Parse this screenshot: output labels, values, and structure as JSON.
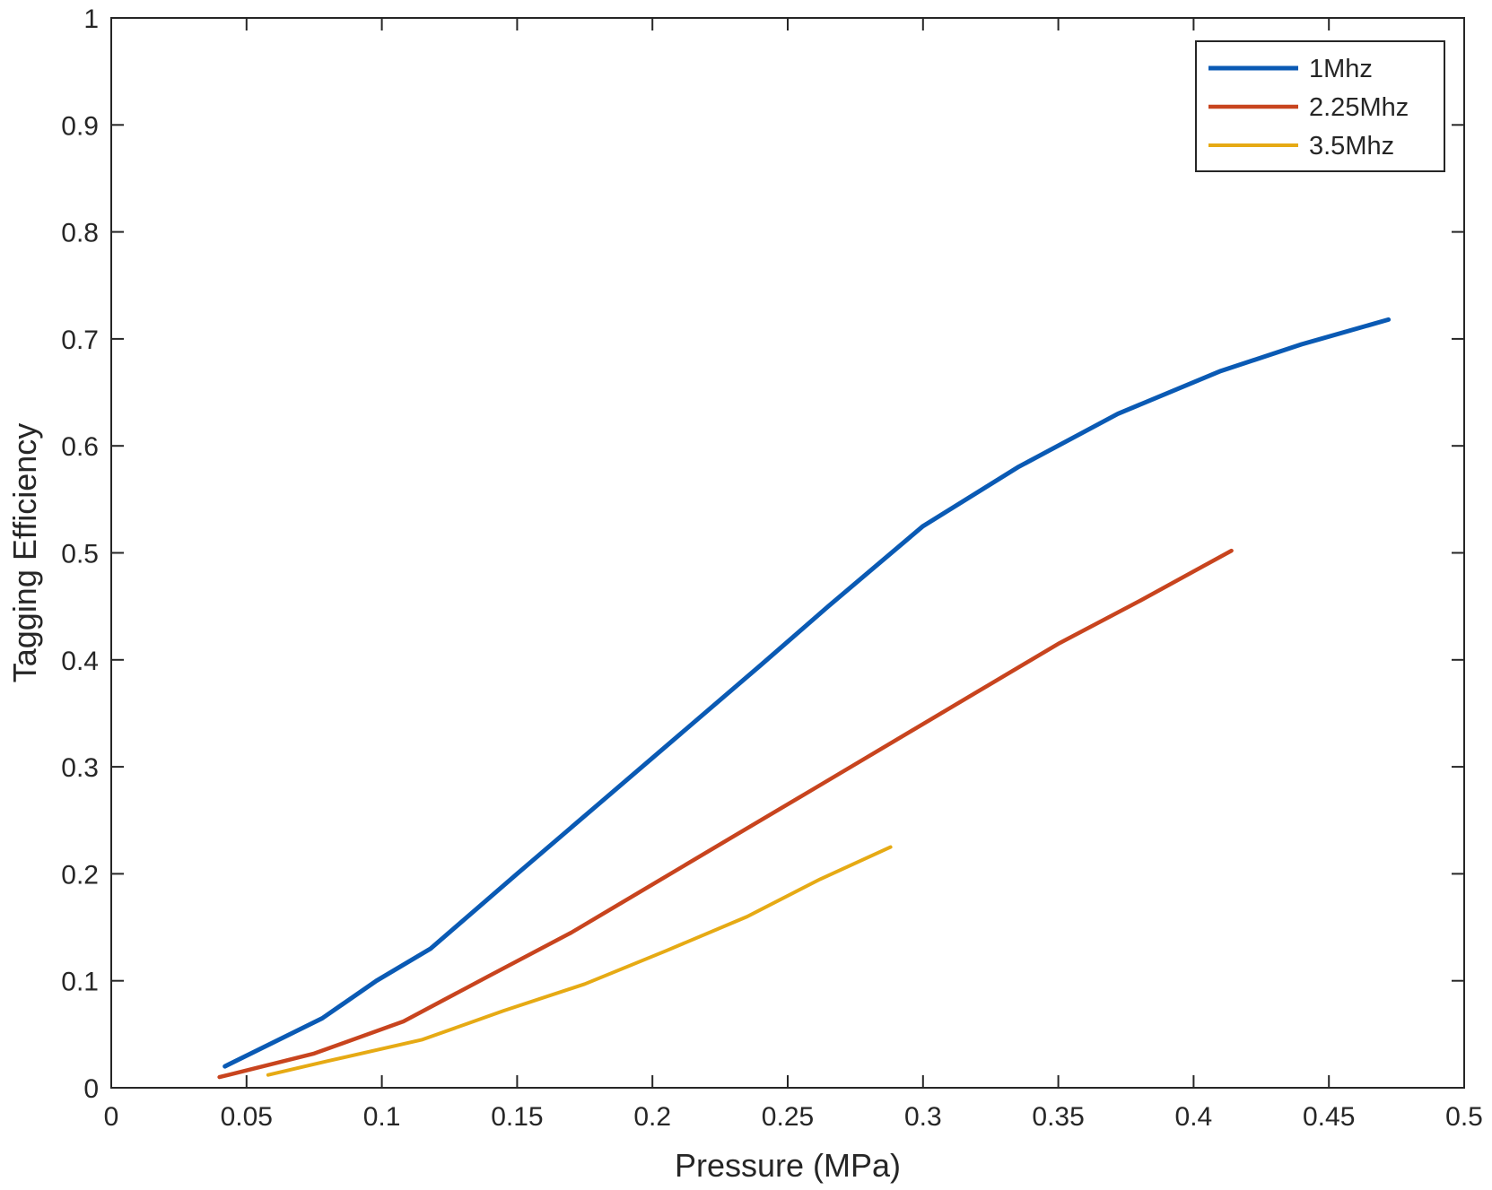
{
  "chart_data": {
    "type": "line",
    "title": "",
    "xlabel": "Pressure (MPa)",
    "ylabel": "Tagging Efficiency",
    "xlim": [
      0,
      0.5
    ],
    "ylim": [
      0,
      1
    ],
    "x_ticks": [
      "0",
      "0.05",
      "0.1",
      "0.15",
      "0.2",
      "0.25",
      "0.3",
      "0.35",
      "0.4",
      "0.45",
      "0.5"
    ],
    "y_ticks": [
      "0",
      "0.1",
      "0.2",
      "0.3",
      "0.4",
      "0.5",
      "0.6",
      "0.7",
      "0.8",
      "0.9",
      "1"
    ],
    "grid": false,
    "legend_position": "top-right",
    "series": [
      {
        "name": "1Mhz",
        "color": "#0a5ab4",
        "x": [
          0.042,
          0.078,
          0.098,
          0.118,
          0.15,
          0.18,
          0.21,
          0.24,
          0.265,
          0.3,
          0.335,
          0.372,
          0.41,
          0.44,
          0.472
        ],
        "y": [
          0.02,
          0.065,
          0.1,
          0.13,
          0.2,
          0.265,
          0.33,
          0.395,
          0.45,
          0.525,
          0.58,
          0.63,
          0.67,
          0.695,
          0.718
        ]
      },
      {
        "name": "2.25Mhz",
        "color": "#c8441e",
        "x": [
          0.04,
          0.075,
          0.108,
          0.14,
          0.17,
          0.2,
          0.23,
          0.26,
          0.29,
          0.32,
          0.35,
          0.38,
          0.414
        ],
        "y": [
          0.01,
          0.032,
          0.062,
          0.105,
          0.145,
          0.19,
          0.235,
          0.28,
          0.325,
          0.37,
          0.415,
          0.455,
          0.502
        ]
      },
      {
        "name": "3.5Mhz",
        "color": "#e6aa14",
        "x": [
          0.058,
          0.08,
          0.115,
          0.145,
          0.175,
          0.205,
          0.235,
          0.262,
          0.288
        ],
        "y": [
          0.012,
          0.025,
          0.045,
          0.072,
          0.097,
          0.128,
          0.16,
          0.195,
          0.225
        ]
      }
    ]
  }
}
